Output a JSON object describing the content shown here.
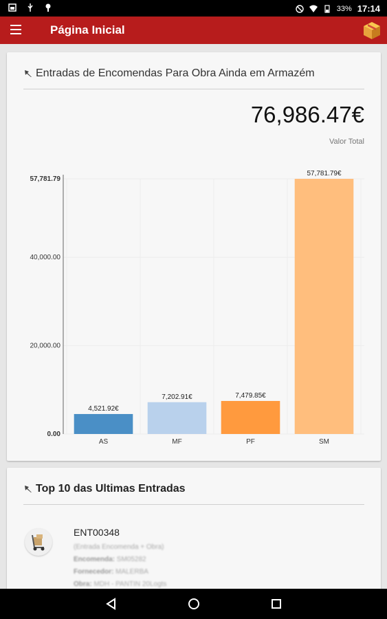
{
  "status_bar": {
    "battery": "33%",
    "time": "17:14"
  },
  "app_bar": {
    "title": "Página Inicial"
  },
  "card_entries": {
    "title": "Entradas de Encomendas Para Obra Ainda em Armazém",
    "total_value": "76,986.47€",
    "total_label": "Valor Total"
  },
  "chart_data": {
    "type": "bar",
    "categories": [
      "AS",
      "MF",
      "PF",
      "SM"
    ],
    "values": [
      4521.92,
      7202.91,
      7479.85,
      57781.79
    ],
    "value_labels": [
      "4,521.92€",
      "7,202.91€",
      "7,479.85€",
      "57,781.79€"
    ],
    "bar_colors": [
      "#4a8fc6",
      "#b9d1ec",
      "#ff9a3e",
      "#ffbe7d"
    ],
    "yticks": [
      0,
      20000,
      40000,
      57781.79
    ],
    "ytick_labels": [
      "0.00",
      "20,000.00",
      "40,000.00",
      "57,781.79"
    ],
    "ylim": [
      0,
      57781.79
    ],
    "grid": true,
    "legend": "none",
    "title": "",
    "xlabel": "",
    "ylabel": ""
  },
  "card_top10": {
    "title": "Top 10 das Ultimas Entradas",
    "entries": [
      {
        "id": "ENT00348",
        "subtitle": "(Entrada Encomenda + Obra)",
        "encomenda_label": "Encomenda:",
        "encomenda_value": "SM05282",
        "fornecedor_label": "Fornecedor:",
        "fornecedor_value": "MALERBA",
        "obra_label": "Obra:",
        "obra_value": "MDH - PANTIN 20Logts"
      }
    ]
  },
  "icons": {
    "menu": "hamburger-menu-icon",
    "app_logo": "box-icon",
    "pin": "pin-icon",
    "nav_back": "back-triangle-icon",
    "nav_home": "home-circle-icon",
    "nav_recent": "recent-square-icon"
  },
  "colors": {
    "app_bar": "#b71c1c",
    "background": "#e6e6e6",
    "card": "#f7f7f7"
  }
}
